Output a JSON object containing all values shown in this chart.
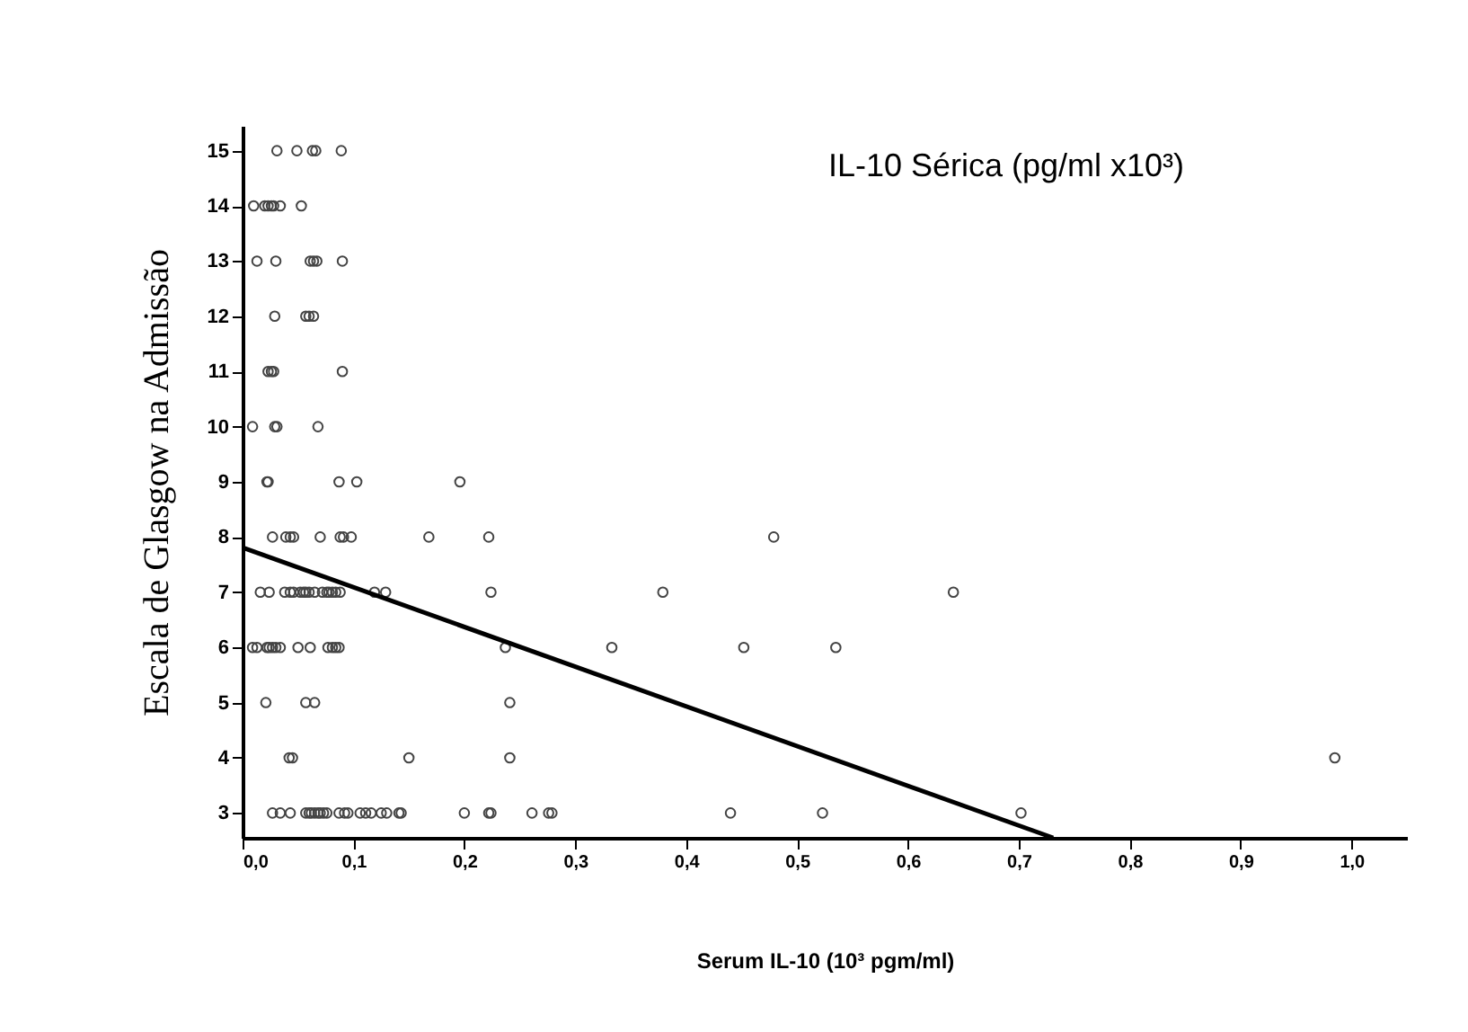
{
  "chart_data": {
    "type": "scatter",
    "xlabel": "Serum IL-10  (10³ pgm/ml)",
    "ylabel": "Escala de Glasgow na Admissão",
    "annotations": [
      "IL-10 Sérica (pg/ml x10³)"
    ],
    "xlim": [
      0,
      1.05
    ],
    "ylim": [
      2.55,
      15.45
    ],
    "xticks": [
      {
        "value": 0,
        "label": "0,0"
      },
      {
        "value": 0.1,
        "label": "0,1"
      },
      {
        "value": 0.2,
        "label": "0,2"
      },
      {
        "value": 0.3,
        "label": "0,3"
      },
      {
        "value": 0.4,
        "label": "0,4"
      },
      {
        "value": 0.5,
        "label": "0,5"
      },
      {
        "value": 0.6,
        "label": "0,6"
      },
      {
        "value": 0.7,
        "label": "0,7"
      },
      {
        "value": 0.8,
        "label": "0,8"
      },
      {
        "value": 0.9,
        "label": "0,9"
      },
      {
        "value": 1,
        "label": "1,0"
      }
    ],
    "yticks": [
      3,
      4,
      5,
      6,
      7,
      8,
      9,
      10,
      11,
      12,
      13,
      14,
      15
    ],
    "grid": false,
    "marker": "circle",
    "series": [
      {
        "color": "#444444",
        "x": [
          0.031,
          0.049,
          0.063,
          0.066,
          0.089,
          0.01,
          0.02,
          0.023,
          0.026,
          0.028,
          0.034,
          0.053,
          0.013,
          0.03,
          0.061,
          0.064,
          0.067,
          0.09,
          0.029,
          0.057,
          0.06,
          0.064,
          0.023,
          0.026,
          0.028,
          0.09,
          0.009,
          0.029,
          0.031,
          0.068,
          0.022,
          0.023,
          0.087,
          0.103,
          0.196,
          0.027,
          0.039,
          0.043,
          0.046,
          0.07,
          0.088,
          0.091,
          0.098,
          0.168,
          0.222,
          0.479,
          0.016,
          0.024,
          0.038,
          0.043,
          0.046,
          0.052,
          0.055,
          0.057,
          0.06,
          0.065,
          0.072,
          0.076,
          0.078,
          0.081,
          0.084,
          0.088,
          0.119,
          0.129,
          0.224,
          0.379,
          0.641,
          0.009,
          0.013,
          0.022,
          0.024,
          0.027,
          0.03,
          0.034,
          0.05,
          0.061,
          0.077,
          0.081,
          0.084,
          0.087,
          0.237,
          0.333,
          0.452,
          0.535,
          0.021,
          0.057,
          0.065,
          0.241,
          0.042,
          0.045,
          0.15,
          0.241,
          0.985,
          0.027,
          0.034,
          0.043,
          0.057,
          0.06,
          0.062,
          0.065,
          0.068,
          0.07,
          0.073,
          0.076,
          0.087,
          0.092,
          0.095,
          0.106,
          0.111,
          0.116,
          0.125,
          0.13,
          0.141,
          0.143,
          0.2,
          0.222,
          0.224,
          0.261,
          0.276,
          0.279,
          0.44,
          0.523,
          0.702
        ],
        "values": [
          15,
          15,
          15,
          15,
          15,
          14,
          14,
          14,
          14,
          14,
          14,
          14,
          13,
          13,
          13,
          13,
          13,
          13,
          12,
          12,
          12,
          12,
          11,
          11,
          11,
          11,
          10,
          10,
          10,
          10,
          9,
          9,
          9,
          9,
          9,
          8,
          8,
          8,
          8,
          8,
          8,
          8,
          8,
          8,
          8,
          8,
          7,
          7,
          7,
          7,
          7,
          7,
          7,
          7,
          7,
          7,
          7,
          7,
          7,
          7,
          7,
          7,
          7,
          7,
          7,
          7,
          7,
          6,
          6,
          6,
          6,
          6,
          6,
          6,
          6,
          6,
          6,
          6,
          6,
          6,
          6,
          6,
          6,
          6,
          5,
          5,
          5,
          5,
          4,
          4,
          4,
          4,
          4,
          3,
          3,
          3,
          3,
          3,
          3,
          3,
          3,
          3,
          3,
          3,
          3,
          3,
          3,
          3,
          3,
          3,
          3,
          3,
          3,
          3,
          3,
          3,
          3,
          3,
          3,
          3,
          3,
          3,
          3
        ]
      },
      {
        "type": "line",
        "marker": "none",
        "color": "#000000",
        "x": [
          0,
          0.731
        ],
        "values": [
          7.81,
          2.55
        ]
      }
    ]
  }
}
